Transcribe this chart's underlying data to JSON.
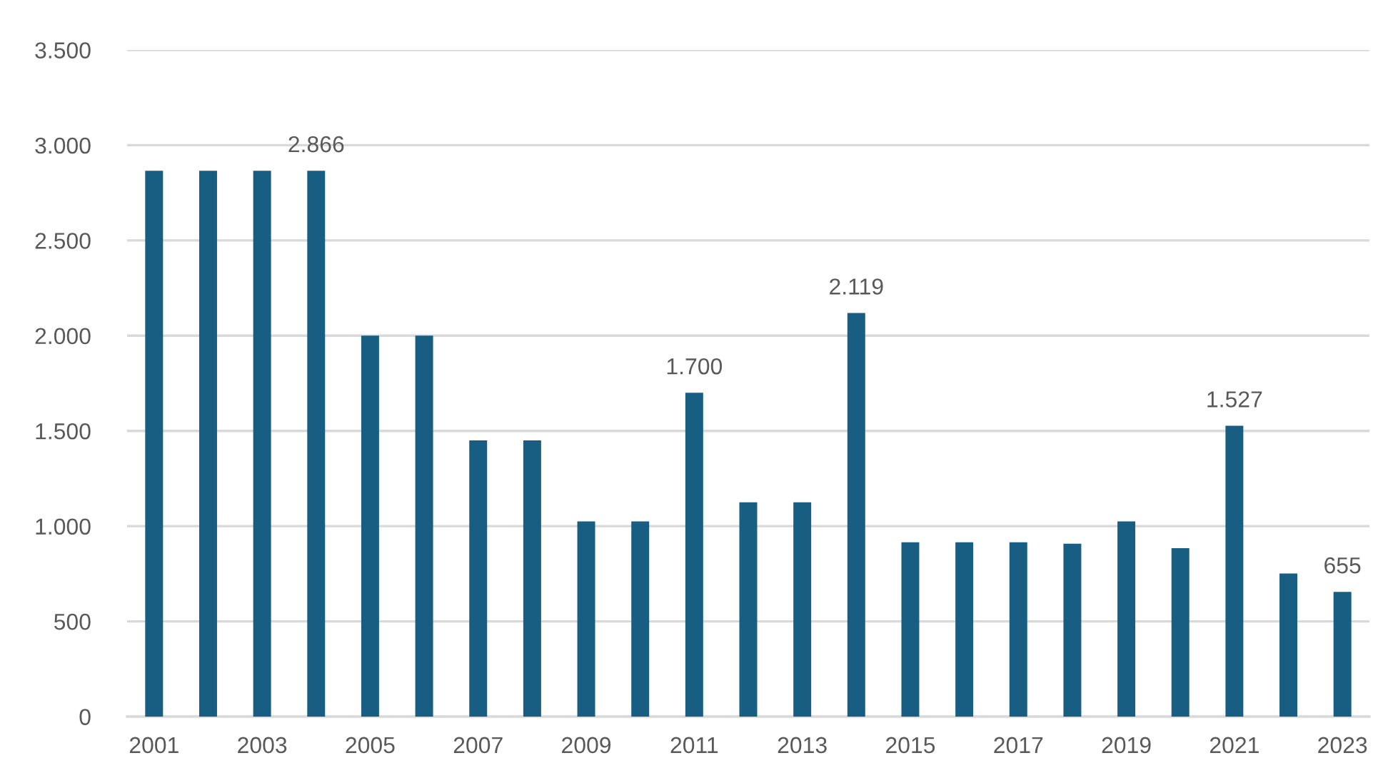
{
  "chart_data": {
    "type": "bar",
    "categories": [
      "2001",
      null,
      "2003",
      null,
      "2005",
      null,
      "2007",
      null,
      "2009",
      null,
      "2011",
      null,
      "2013",
      null,
      "2015",
      null,
      "2017",
      null,
      "2019",
      null,
      "2021",
      null,
      "2023"
    ],
    "values": [
      2866,
      2866,
      2866,
      2866,
      2000,
      2000,
      1450,
      1450,
      1025,
      1025,
      1700,
      1125,
      1125,
      2119,
      915,
      915,
      915,
      908,
      1025,
      884,
      1527,
      751,
      655
    ],
    "value_labels": [
      null,
      null,
      null,
      "2.866",
      null,
      null,
      null,
      null,
      null,
      null,
      "1.700",
      null,
      null,
      "2.119",
      null,
      null,
      null,
      null,
      null,
      null,
      "1.527",
      null,
      "655"
    ],
    "color": "#175e82",
    "ylim": [
      0,
      3500
    ],
    "yticks": [
      0,
      500,
      {
        "value": 1000,
        "label": "1.000"
      },
      {
        "value": 1500,
        "label": "1.500"
      },
      {
        "value": 2000,
        "label": "2.000"
      },
      {
        "value": 2500,
        "label": "2.500"
      },
      {
        "value": 3000,
        "label": "3.000"
      },
      {
        "value": 3500,
        "label": "3.500"
      }
    ],
    "grid": "y"
  }
}
